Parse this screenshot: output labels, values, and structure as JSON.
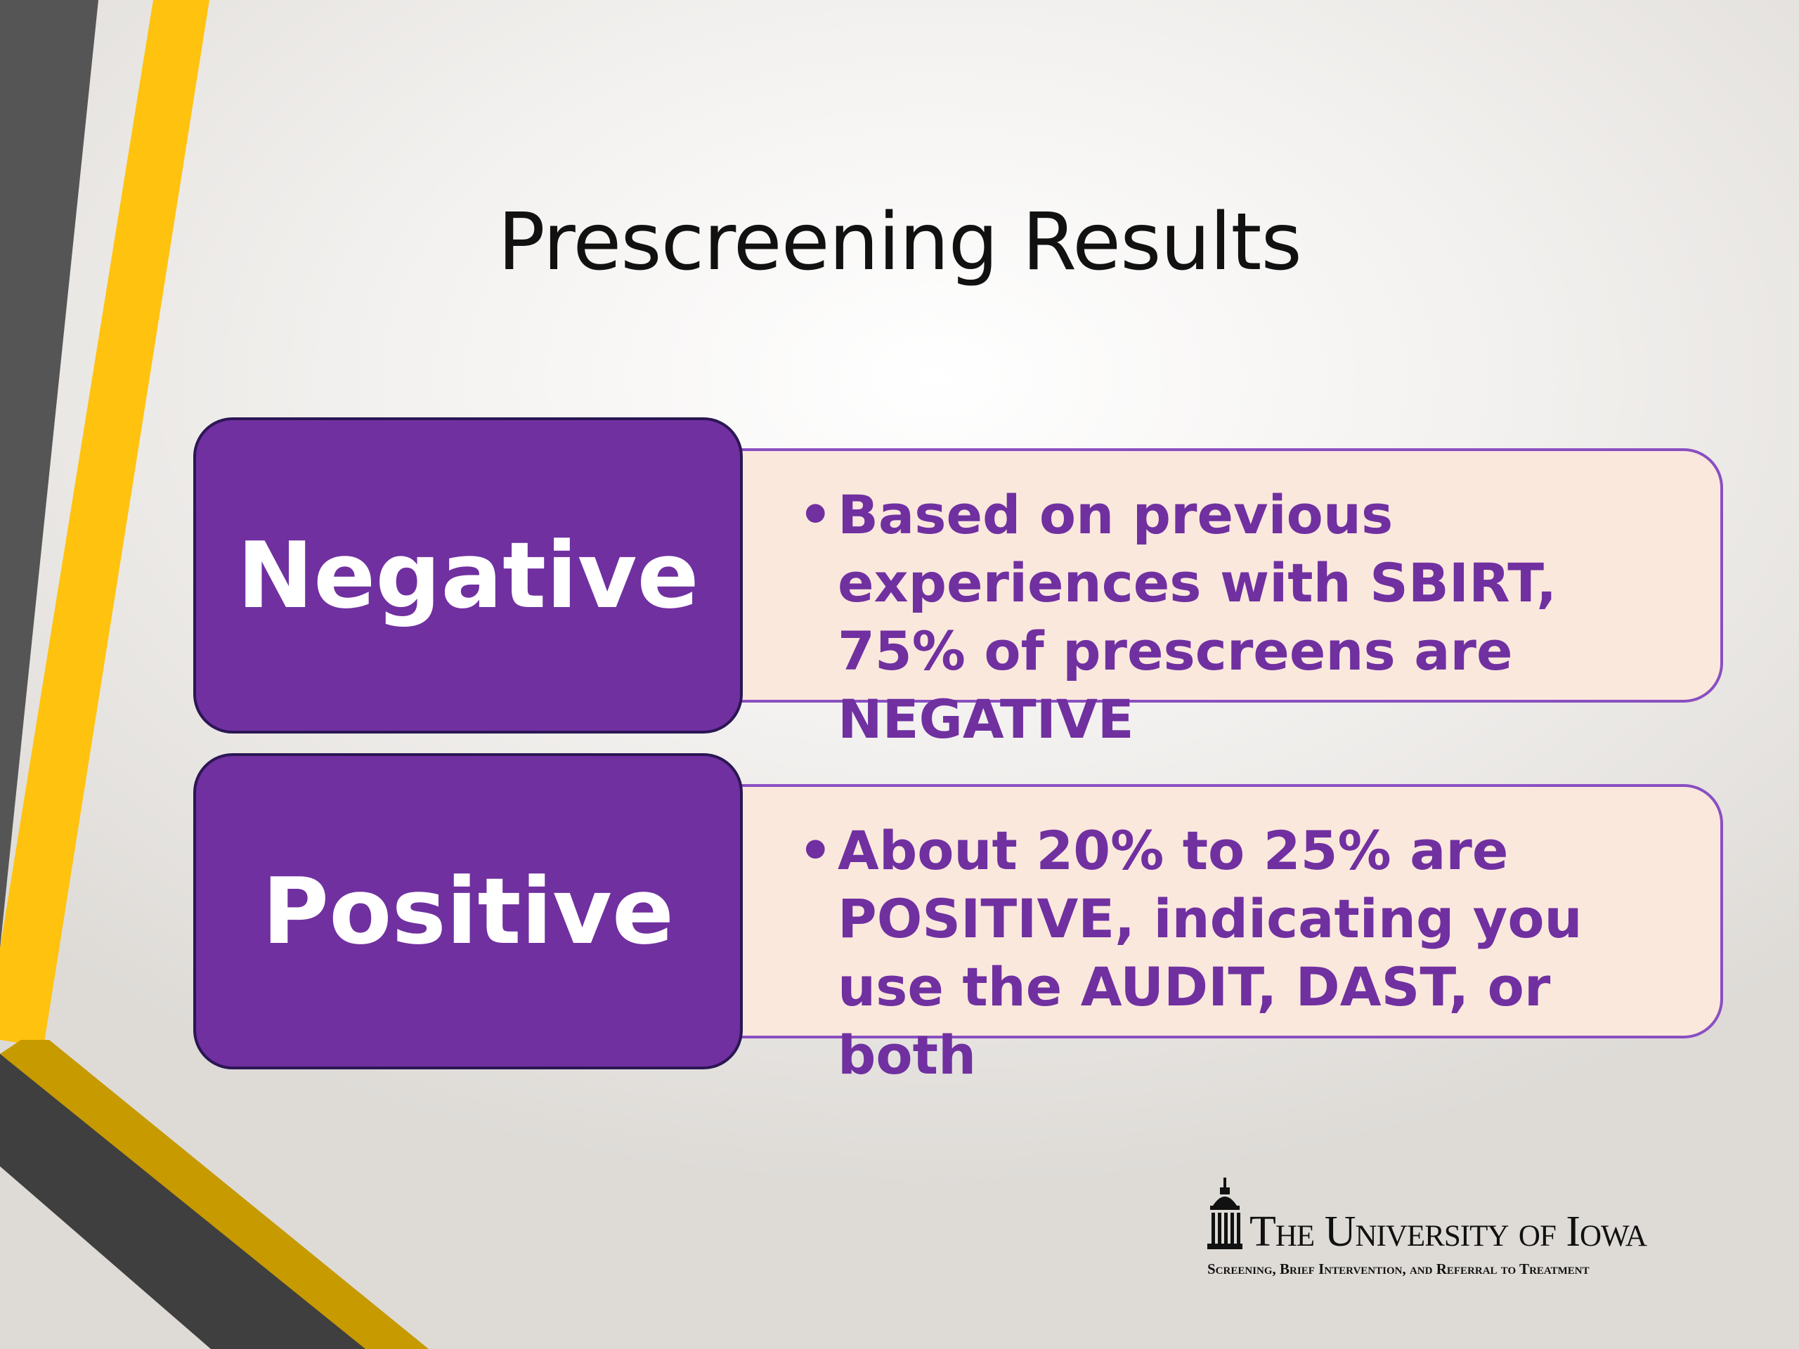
{
  "slide": {
    "title": "Prescreening Results"
  },
  "results": [
    {
      "label": "Negative",
      "text": "Based on previous experiences with SBIRT, 75% of prescreens are NEGATIVE"
    },
    {
      "label": "Positive",
      "text": "About 20% to 25% are POSITIVE, indicating you use the AUDIT, DAST, or both"
    }
  ],
  "logo": {
    "name": "The University of Iowa",
    "subtitle": "Screening, Brief Intervention, and Referral to Treatment",
    "icon": "old-capitol-dome-icon"
  },
  "colors": {
    "purple": "#7030a0",
    "peach": "#fbe8dd",
    "gold": "#ffc20e",
    "dark_gold": "#c79a00",
    "gray": "#555555"
  }
}
